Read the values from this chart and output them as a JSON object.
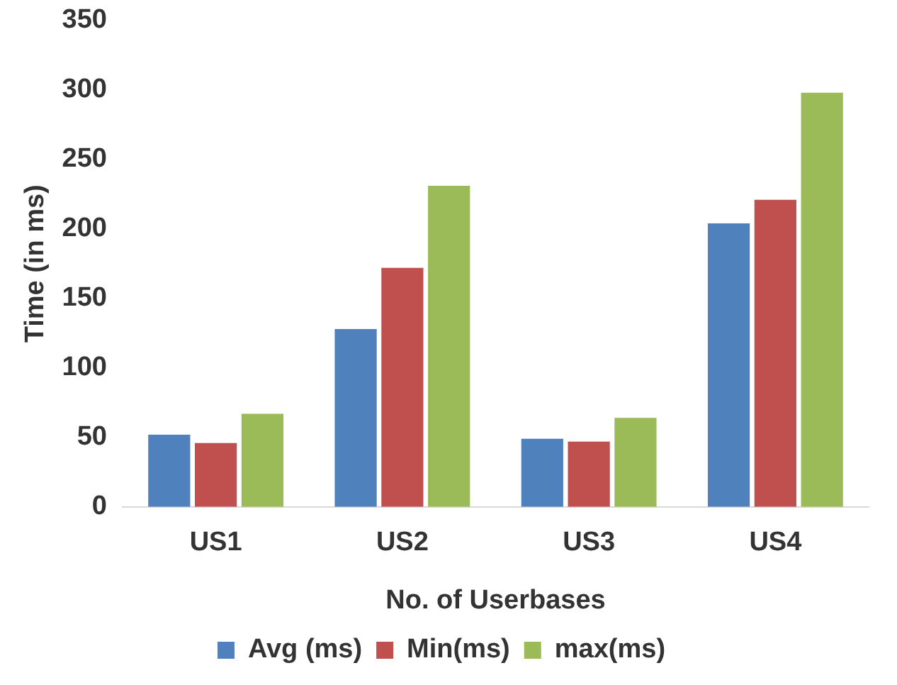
{
  "chart_data": {
    "type": "bar",
    "xlabel": "No. of Userbases",
    "ylabel": "Time (in ms)",
    "categories": [
      "US1",
      "US2",
      "US3",
      "US4"
    ],
    "series": [
      {
        "name": "Avg (ms)",
        "color": "#4f81bd",
        "values": [
          52,
          128,
          49,
          204
        ]
      },
      {
        "name": "Min(ms)",
        "color": "#c0504d",
        "values": [
          46,
          172,
          47,
          221
        ]
      },
      {
        "name": "max(ms)",
        "color": "#9bbb59",
        "values": [
          67,
          231,
          64,
          298
        ]
      }
    ],
    "ylim": [
      0,
      350
    ],
    "yticks": [
      0,
      50,
      100,
      150,
      200,
      250,
      300,
      350
    ],
    "grid": false,
    "legend": "bottom"
  }
}
